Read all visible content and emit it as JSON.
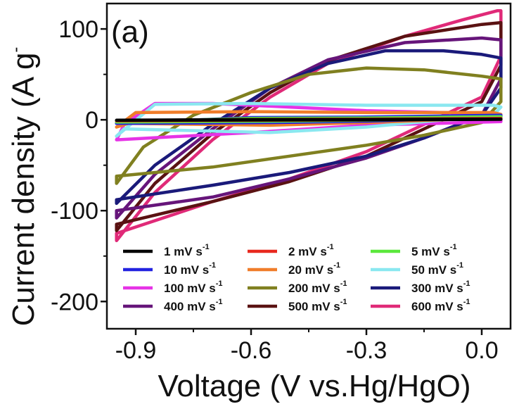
{
  "chart_data": {
    "type": "line",
    "panel_label": "(a)",
    "xlabel": "Voltage (V vs.Hg/HgO)",
    "ylabel": "Current density (A g",
    "ylabel_sup": "-",
    "xlim": [
      -0.975,
      0.075
    ],
    "ylim": [
      -230,
      128
    ],
    "x_ticks": [
      -0.9,
      -0.6,
      -0.3,
      0.0
    ],
    "x_tick_labels": [
      "-0.9",
      "-0.6",
      "-0.3",
      "0.0"
    ],
    "y_ticks": [
      -200,
      -100,
      0,
      100
    ],
    "y_tick_labels": [
      "-200",
      "-100",
      "0",
      "100"
    ],
    "legend": {
      "placement": "bottom",
      "columns": 3
    },
    "series": [
      {
        "name": "1 mV s",
        "sup": "-1",
        "color": "#000000",
        "path": [
          [
            -0.95,
            -0.5
          ],
          [
            -0.55,
            -0.2
          ],
          [
            -0.3,
            -0.1
          ],
          [
            0.05,
            0.5
          ],
          [
            0.05,
            0.8
          ],
          [
            -0.3,
            0.4
          ],
          [
            -0.6,
            0.2
          ],
          [
            -0.95,
            -0.5
          ]
        ]
      },
      {
        "name": "2 mV s",
        "sup": "-1",
        "color": "#e8281e",
        "path": [
          [
            -0.95,
            -1
          ],
          [
            -0.55,
            -0.5
          ],
          [
            -0.3,
            -0.2
          ],
          [
            0.05,
            1
          ],
          [
            0.05,
            1.5
          ],
          [
            -0.3,
            0.8
          ],
          [
            -0.6,
            0.4
          ],
          [
            -0.95,
            -1
          ]
        ]
      },
      {
        "name": "5 mV s",
        "sup": "-1",
        "color": "#5be83c",
        "path": [
          [
            -0.95,
            -2.5
          ],
          [
            -0.55,
            -1.5
          ],
          [
            -0.3,
            -0.5
          ],
          [
            0.05,
            2
          ],
          [
            0.05,
            3.5
          ],
          [
            -0.3,
            2
          ],
          [
            -0.6,
            1.5
          ],
          [
            -0.95,
            -2.5
          ]
        ]
      },
      {
        "name": "10 mV s",
        "sup": "-1",
        "color": "#2323e0",
        "path": [
          [
            -0.95,
            -4
          ],
          [
            -0.55,
            -3
          ],
          [
            -0.3,
            -1.5
          ],
          [
            0.05,
            3
          ],
          [
            0.05,
            5
          ],
          [
            -0.3,
            3
          ],
          [
            -0.6,
            2.5
          ],
          [
            -0.95,
            -4
          ]
        ]
      },
      {
        "name": "20 mV s",
        "sup": "-1",
        "color": "#f07d2a",
        "path": [
          [
            -0.95,
            -8
          ],
          [
            -0.92,
            -4
          ],
          [
            -0.55,
            -6
          ],
          [
            -0.3,
            -3
          ],
          [
            0.02,
            2
          ],
          [
            0.05,
            6
          ],
          [
            0.03,
            8
          ],
          [
            -0.3,
            8
          ],
          [
            -0.6,
            9
          ],
          [
            -0.9,
            8
          ],
          [
            -0.95,
            -8
          ]
        ]
      },
      {
        "name": "50 mV s",
        "sup": "-1",
        "color": "#8ae8f0",
        "path": [
          [
            -0.95,
            -18
          ],
          [
            -0.93,
            -10
          ],
          [
            -0.55,
            -14
          ],
          [
            -0.3,
            -8
          ],
          [
            0.03,
            5
          ],
          [
            0.05,
            14
          ],
          [
            0.03,
            16
          ],
          [
            -0.3,
            16
          ],
          [
            -0.6,
            18
          ],
          [
            -0.85,
            17
          ],
          [
            -0.95,
            -18
          ]
        ]
      },
      {
        "name": "100 mV s",
        "sup": "-1",
        "color": "#e633e6",
        "path": [
          [
            -0.95,
            -22
          ],
          [
            -0.93,
            -5
          ],
          [
            -0.85,
            18
          ],
          [
            -0.7,
            18
          ],
          [
            -0.5,
            14
          ],
          [
            -0.3,
            10
          ],
          [
            0.0,
            7
          ],
          [
            0.05,
            5
          ],
          [
            0.05,
            -2
          ],
          [
            -0.3,
            -6
          ],
          [
            -0.6,
            -14
          ],
          [
            -0.95,
            -22
          ]
        ]
      },
      {
        "name": "200 mV s",
        "sup": "-1",
        "color": "#808020",
        "path": [
          [
            -0.95,
            -70
          ],
          [
            -0.88,
            -30
          ],
          [
            -0.75,
            5
          ],
          [
            -0.6,
            30
          ],
          [
            -0.45,
            50
          ],
          [
            -0.3,
            57
          ],
          [
            -0.15,
            55
          ],
          [
            0.0,
            48
          ],
          [
            0.05,
            45
          ],
          [
            0.05,
            20
          ],
          [
            0.0,
            -3
          ],
          [
            -0.15,
            -17
          ],
          [
            -0.3,
            -28
          ],
          [
            -0.5,
            -40
          ],
          [
            -0.7,
            -52
          ],
          [
            -0.95,
            -62
          ],
          [
            -0.95,
            -70
          ]
        ]
      },
      {
        "name": "300 mV s",
        "sup": "-1",
        "color": "#1a1a7a",
        "path": [
          [
            -0.95,
            -92
          ],
          [
            -0.85,
            -50
          ],
          [
            -0.7,
            -5
          ],
          [
            -0.55,
            35
          ],
          [
            -0.4,
            62
          ],
          [
            -0.25,
            76
          ],
          [
            -0.1,
            76
          ],
          [
            0.0,
            72
          ],
          [
            0.05,
            68
          ],
          [
            0.05,
            35
          ],
          [
            0.0,
            5
          ],
          [
            -0.15,
            -20
          ],
          [
            -0.3,
            -40
          ],
          [
            -0.5,
            -58
          ],
          [
            -0.7,
            -72
          ],
          [
            -0.95,
            -88
          ],
          [
            -0.95,
            -92
          ]
        ]
      },
      {
        "name": "400 mV s",
        "sup": "-1",
        "color": "#66157a",
        "path": [
          [
            -0.95,
            -108
          ],
          [
            -0.85,
            -60
          ],
          [
            -0.7,
            -10
          ],
          [
            -0.55,
            35
          ],
          [
            -0.4,
            66
          ],
          [
            -0.2,
            85
          ],
          [
            0.0,
            90
          ],
          [
            0.05,
            88
          ],
          [
            0.05,
            45
          ],
          [
            0.0,
            5
          ],
          [
            -0.15,
            -20
          ],
          [
            -0.3,
            -42
          ],
          [
            -0.5,
            -65
          ],
          [
            -0.7,
            -85
          ],
          [
            -0.95,
            -100
          ],
          [
            -0.95,
            -108
          ]
        ]
      },
      {
        "name": "500 mV s",
        "sup": "-1",
        "color": "#5a1212",
        "path": [
          [
            -0.95,
            -122
          ],
          [
            -0.85,
            -70
          ],
          [
            -0.7,
            -15
          ],
          [
            -0.55,
            30
          ],
          [
            -0.4,
            65
          ],
          [
            -0.2,
            92
          ],
          [
            0.0,
            105
          ],
          [
            0.05,
            107
          ],
          [
            0.05,
            60
          ],
          [
            0.0,
            20
          ],
          [
            -0.15,
            -10
          ],
          [
            -0.3,
            -40
          ],
          [
            -0.5,
            -68
          ],
          [
            -0.7,
            -90
          ],
          [
            -0.95,
            -115
          ],
          [
            -0.95,
            -122
          ]
        ]
      },
      {
        "name": "600 mV s",
        "sup": "-1",
        "color": "#e02a78",
        "path": [
          [
            -0.95,
            -133
          ],
          [
            -0.85,
            -80
          ],
          [
            -0.7,
            -22
          ],
          [
            -0.55,
            25
          ],
          [
            -0.4,
            62
          ],
          [
            -0.2,
            92
          ],
          [
            -0.05,
            110
          ],
          [
            0.04,
            120
          ],
          [
            0.05,
            120
          ],
          [
            0.05,
            70
          ],
          [
            0.0,
            25
          ],
          [
            -0.15,
            -5
          ],
          [
            -0.3,
            -35
          ],
          [
            -0.5,
            -65
          ],
          [
            -0.7,
            -90
          ],
          [
            -0.95,
            -125
          ],
          [
            -0.95,
            -133
          ]
        ]
      }
    ]
  }
}
